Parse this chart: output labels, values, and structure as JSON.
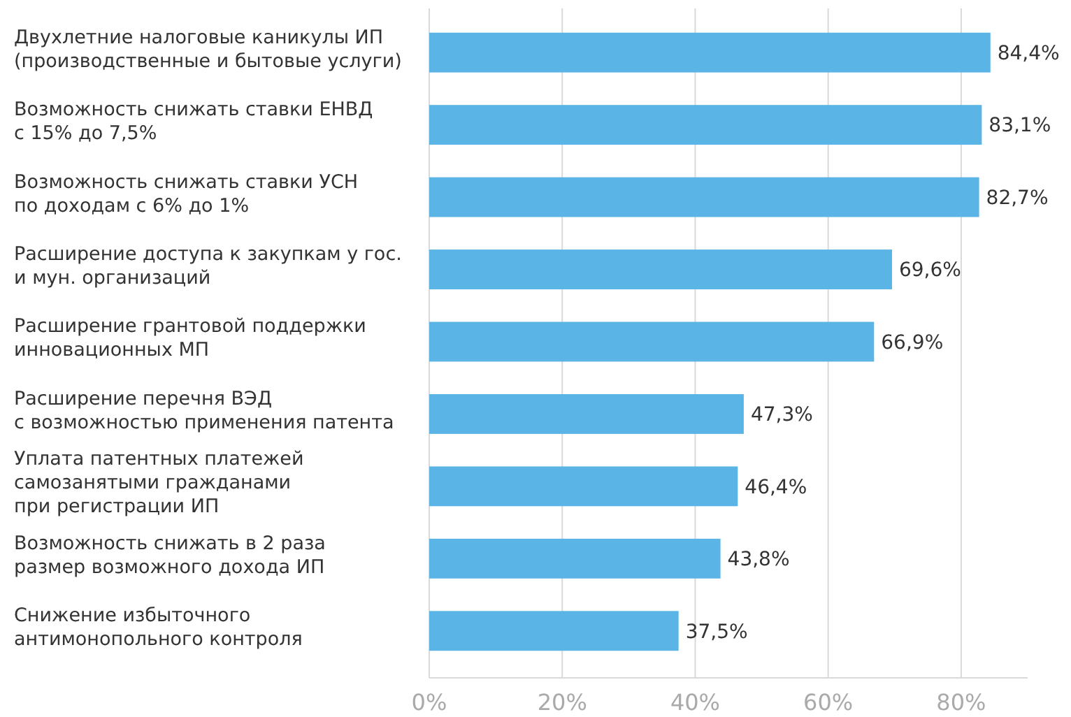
{
  "chart_data": {
    "type": "bar",
    "orientation": "horizontal",
    "categories": [
      "Двухлетние налоговые каникулы ИП\n(производственные и бытовые услуги)",
      "Возможность снижать ставки ЕНВД\nс 15% до 7,5%",
      "Возможность снижать ставки УСН\nпо доходам с 6% до 1%",
      "Расширение доступа к закупкам у гос.\nи мун. организаций",
      "Расширение грантовой поддержки\nинновационных МП",
      "Расширение перечня ВЭД\nс возможностью применения патента",
      "Уплата патентных платежей\nсамозанятыми гражданами\nпри регистрации ИП",
      "Возможность снижать в 2 раза\nразмер возможного дохода ИП",
      "Снижение избыточного\nантимонопольного контроля"
    ],
    "values": [
      84.4,
      83.1,
      82.7,
      69.6,
      66.9,
      47.3,
      46.4,
      43.8,
      37.5
    ],
    "value_labels": [
      "84,4%",
      "83,1%",
      "82,7%",
      "69,6%",
      "66,9%",
      "47,3%",
      "46,4%",
      "43,8%",
      "37,5%"
    ],
    "color": "#5ab4e6",
    "xlim": [
      0,
      90
    ],
    "xticks": [
      {
        "value": 0,
        "label": "0%"
      },
      {
        "value": 20,
        "label": "20%"
      },
      {
        "value": 40,
        "label": "40%"
      },
      {
        "value": 60,
        "label": "60%"
      },
      {
        "value": 80,
        "label": "80%"
      }
    ],
    "grid": "x"
  }
}
